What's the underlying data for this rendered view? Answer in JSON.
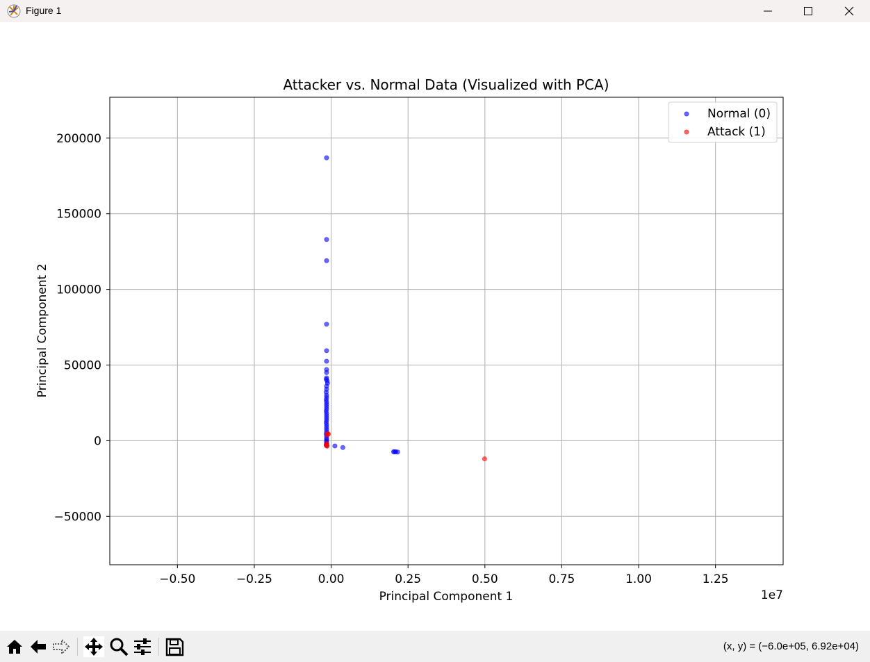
{
  "window": {
    "title": "Figure 1",
    "icon": "matplotlib-icon",
    "controls": [
      "minimize-icon",
      "maximize-icon",
      "close-icon"
    ]
  },
  "toolbar": {
    "buttons": [
      "home-icon",
      "back-arrow-icon",
      "forward-arrow-icon",
      "pan-icon",
      "zoom-icon",
      "configure-subplots-icon",
      "save-icon"
    ],
    "status_text": "(x, y) = (−6.0e+05, 6.92e+04)"
  },
  "chart_data": {
    "type": "scatter",
    "title": "Attacker vs. Normal Data (Visualized with PCA)",
    "xlabel": "Principal Component 1",
    "ylabel": "Principal Component 2",
    "x_offset_text": "1e7",
    "xlim": [
      -0.72,
      1.47
    ],
    "ylim": [
      -82000,
      227000
    ],
    "x_ticks": [
      -0.5,
      -0.25,
      0.0,
      0.25,
      0.5,
      0.75,
      1.0,
      1.25
    ],
    "x_tick_labels": [
      "−0.50",
      "−0.25",
      "0.00",
      "0.25",
      "0.50",
      "0.75",
      "1.00",
      "1.25"
    ],
    "y_ticks": [
      -50000,
      0,
      50000,
      100000,
      150000,
      200000
    ],
    "y_tick_labels": [
      "−50000",
      "0",
      "50000",
      "100000",
      "150000",
      "200000"
    ],
    "grid": true,
    "legend_position": "top-right",
    "series": [
      {
        "name": "Normal (0)",
        "color": "#0000ff",
        "points": [
          [
            -0.015,
            187000
          ],
          [
            -0.015,
            133000
          ],
          [
            -0.015,
            119000
          ],
          [
            -0.015,
            77000
          ],
          [
            -0.015,
            59500
          ],
          [
            -0.015,
            52500
          ],
          [
            -0.015,
            47000
          ],
          [
            -0.015,
            45000
          ],
          [
            -0.015,
            41500
          ],
          [
            -0.016,
            40500
          ],
          [
            -0.013,
            39500
          ],
          [
            -0.012,
            38000
          ],
          [
            -0.015,
            36000
          ],
          [
            -0.015,
            34000
          ],
          [
            -0.016,
            32000
          ],
          [
            -0.015,
            30000
          ],
          [
            -0.015,
            28500
          ],
          [
            -0.016,
            27000
          ],
          [
            -0.015,
            25500
          ],
          [
            -0.015,
            24000
          ],
          [
            -0.015,
            22500
          ],
          [
            -0.015,
            21000
          ],
          [
            -0.016,
            19500
          ],
          [
            -0.015,
            18000
          ],
          [
            -0.015,
            16500
          ],
          [
            -0.015,
            15000
          ],
          [
            -0.015,
            13500
          ],
          [
            -0.016,
            12000
          ],
          [
            -0.015,
            10500
          ],
          [
            -0.015,
            9000
          ],
          [
            -0.015,
            7500
          ],
          [
            -0.015,
            6000
          ],
          [
            -0.016,
            4500
          ],
          [
            -0.015,
            3000
          ],
          [
            -0.015,
            1500
          ],
          [
            -0.015,
            500
          ],
          [
            -0.015,
            -500
          ],
          [
            -0.015,
            -1500
          ],
          [
            -0.016,
            -2500
          ],
          [
            -0.015,
            -3300
          ],
          [
            0.012,
            -3500
          ],
          [
            0.038,
            -4500
          ],
          [
            0.203,
            -7300
          ],
          [
            0.206,
            -7400
          ],
          [
            0.21,
            -7300
          ],
          [
            0.216,
            -7500
          ]
        ]
      },
      {
        "name": "Attack (1)",
        "color": "#ff0000",
        "points": [
          [
            -0.011,
            4700
          ],
          [
            -0.009,
            4300
          ],
          [
            -0.014,
            3800
          ],
          [
            -0.015,
            -1800
          ],
          [
            -0.014,
            -2600
          ],
          [
            -0.016,
            -3100
          ],
          [
            -0.013,
            -3600
          ],
          [
            0.499,
            -12000
          ]
        ]
      }
    ]
  }
}
